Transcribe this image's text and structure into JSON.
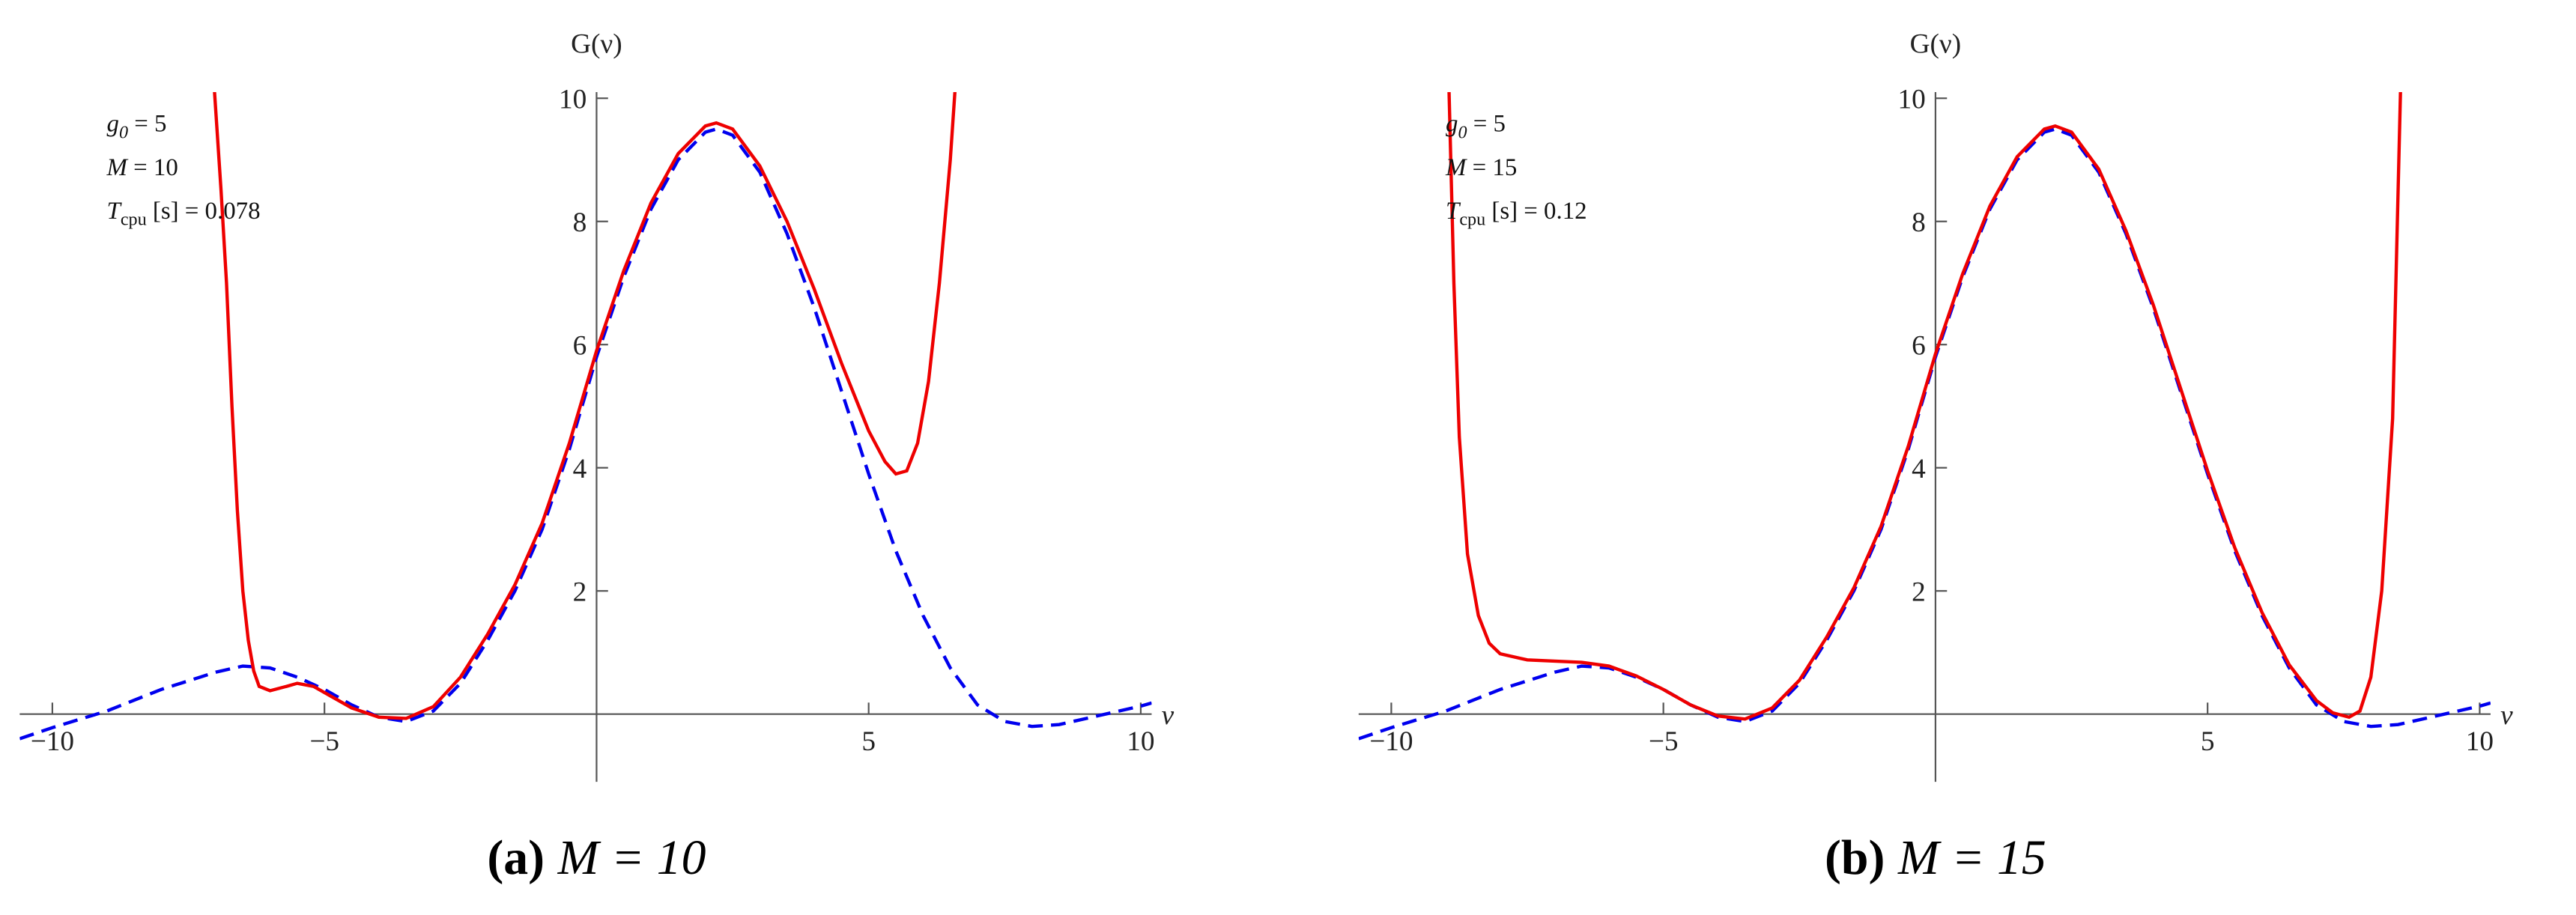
{
  "chart_data": [
    {
      "type": "line",
      "ylabel": "G(ν)",
      "xlabel": "ν",
      "caption": {
        "tag": "(a)",
        "text": "M = 10"
      },
      "annotations": [
        {
          "text": "g",
          "sub": "0",
          "rest": " = 5"
        },
        {
          "text": "M",
          "sub": "",
          "rest": " = 10"
        },
        {
          "text": "T",
          "sub": "cpu",
          "rest": " [s] = 0.078"
        }
      ],
      "xlim": [
        -10.6,
        10.2
      ],
      "ylim": [
        -1.1,
        10.1
      ],
      "xticks": [
        {
          "value": -10,
          "label": "−10"
        },
        {
          "value": -5,
          "label": "−5"
        },
        5,
        10
      ],
      "yticks": [
        2,
        4,
        6,
        8,
        10
      ],
      "series": [
        {
          "color": "#0000ee",
          "dashed": true,
          "x": [
            -10.6,
            -10,
            -9,
            -8,
            -7,
            -6.5,
            -6,
            -5.5,
            -5,
            -4.5,
            -4,
            -3.5,
            -3,
            -2.5,
            -2,
            -1.5,
            -1,
            -0.5,
            0,
            0.5,
            1,
            1.5,
            2,
            2.2,
            2.5,
            3,
            3.5,
            4,
            4.5,
            5,
            5.5,
            6,
            6.5,
            7,
            7.5,
            8,
            8.5,
            9,
            9.5,
            10,
            10.2
          ],
          "values": [
            -0.4,
            -0.22,
            0.05,
            0.4,
            0.68,
            0.78,
            0.75,
            0.6,
            0.4,
            0.15,
            -0.05,
            -0.12,
            0.05,
            0.5,
            1.2,
            2,
            3,
            4.3,
            5.8,
            7.1,
            8.2,
            9,
            9.45,
            9.5,
            9.4,
            8.8,
            7.8,
            6.6,
            5.25,
            3.9,
            2.65,
            1.6,
            0.75,
            0.15,
            -0.12,
            -0.2,
            -0.17,
            -0.07,
            0.03,
            0.13,
            0.18
          ]
        },
        {
          "color": "#ee0000",
          "dashed": false,
          "x": [
            -7.05,
            -6.9,
            -6.8,
            -6.7,
            -6.6,
            -6.5,
            -6.4,
            -6.3,
            -6.2,
            -6,
            -5.7,
            -5.5,
            -5.2,
            -5,
            -4.5,
            -4,
            -3.5,
            -3,
            -2.5,
            -2,
            -1.5,
            -1,
            -0.5,
            0,
            0.5,
            1,
            1.5,
            2,
            2.2,
            2.5,
            3,
            3.5,
            4,
            4.5,
            5,
            5.3,
            5.5,
            5.7,
            5.9,
            6.1,
            6.3,
            6.5,
            6.6
          ],
          "values": [
            10.5,
            8.5,
            7,
            5,
            3.3,
            2,
            1.2,
            0.7,
            0.45,
            0.38,
            0.45,
            0.5,
            0.45,
            0.35,
            0.1,
            -0.05,
            -0.07,
            0.12,
            0.6,
            1.3,
            2.1,
            3.1,
            4.4,
            5.9,
            7.2,
            8.3,
            9.1,
            9.55,
            9.6,
            9.5,
            8.9,
            8,
            6.9,
            5.7,
            4.6,
            4.1,
            3.9,
            3.95,
            4.4,
            5.4,
            7,
            9,
            10.3
          ]
        }
      ]
    },
    {
      "type": "line",
      "ylabel": "G(ν)",
      "xlabel": "ν",
      "caption": {
        "tag": "(b)",
        "text": "M = 15"
      },
      "annotations": [
        {
          "text": "g",
          "sub": "0",
          "rest": " = 5"
        },
        {
          "text": "M",
          "sub": "",
          "rest": " = 15"
        },
        {
          "text": "T",
          "sub": "cpu",
          "rest": " [s] = 0.12"
        }
      ],
      "xlim": [
        -10.6,
        10.2
      ],
      "ylim": [
        -1.1,
        10.1
      ],
      "xticks": [
        {
          "value": -10,
          "label": "−10"
        },
        {
          "value": -5,
          "label": "−5"
        },
        5,
        10
      ],
      "yticks": [
        2,
        4,
        6,
        8,
        10
      ],
      "series": [
        {
          "color": "#0000ee",
          "dashed": true,
          "x": [
            -10.6,
            -10,
            -9,
            -8,
            -7,
            -6.5,
            -6,
            -5.5,
            -5,
            -4.5,
            -4,
            -3.5,
            -3,
            -2.5,
            -2,
            -1.5,
            -1,
            -0.5,
            0,
            0.5,
            1,
            1.5,
            2,
            2.2,
            2.5,
            3,
            3.5,
            4,
            4.5,
            5,
            5.5,
            6,
            6.5,
            7,
            7.5,
            8,
            8.5,
            9,
            9.5,
            10,
            10.2
          ],
          "values": [
            -0.4,
            -0.22,
            0.05,
            0.4,
            0.68,
            0.78,
            0.75,
            0.6,
            0.4,
            0.15,
            -0.05,
            -0.12,
            0.05,
            0.5,
            1.2,
            2,
            3,
            4.3,
            5.8,
            7.1,
            8.2,
            9,
            9.45,
            9.5,
            9.4,
            8.8,
            7.8,
            6.6,
            5.25,
            3.9,
            2.65,
            1.6,
            0.75,
            0.15,
            -0.12,
            -0.2,
            -0.17,
            -0.07,
            0.03,
            0.13,
            0.18
          ]
        },
        {
          "color": "#ee0000",
          "dashed": false,
          "x": [
            -8.95,
            -8.85,
            -8.75,
            -8.6,
            -8.4,
            -8.2,
            -8,
            -7.5,
            -7,
            -6.5,
            -6,
            -5.5,
            -5,
            -4.5,
            -4,
            -3.5,
            -3,
            -2.5,
            -2,
            -1.5,
            -1,
            -0.5,
            0,
            0.5,
            1,
            1.5,
            2,
            2.2,
            2.5,
            3,
            3.5,
            4,
            4.5,
            5,
            5.5,
            6,
            6.5,
            7,
            7.3,
            7.6,
            7.8,
            8,
            8.2,
            8.4,
            8.55
          ],
          "values": [
            10.5,
            7,
            4.5,
            2.6,
            1.6,
            1.15,
            0.98,
            0.88,
            0.86,
            0.84,
            0.78,
            0.62,
            0.4,
            0.15,
            -0.03,
            -0.08,
            0.1,
            0.55,
            1.25,
            2.05,
            3.05,
            4.35,
            5.85,
            7.15,
            8.25,
            9.05,
            9.5,
            9.55,
            9.45,
            8.85,
            7.85,
            6.65,
            5.3,
            3.95,
            2.7,
            1.65,
            0.8,
            0.22,
            0.02,
            -0.05,
            0.05,
            0.6,
            2,
            4.8,
            10.3
          ]
        }
      ]
    }
  ]
}
